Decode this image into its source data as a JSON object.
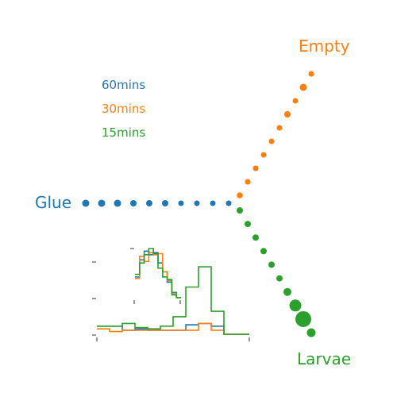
{
  "colors": {
    "glue": "#1f77b4",
    "empty": "#ff7f0e",
    "larvae": "#2ca02c",
    "axis": "#000000"
  },
  "labels": {
    "glue": "Glue",
    "empty": "Empty",
    "larvae": "Larvae"
  },
  "legend": [
    "60mins",
    "30mins",
    "15mins"
  ],
  "chart_data": [
    {
      "type": "scatter",
      "description_free": true,
      "arms": [
        {
          "name": "Glue",
          "color": "#1f77b4",
          "sizes": [
            4.5,
            4.5,
            4.5,
            4,
            4,
            4,
            3.5,
            3.5,
            3.5,
            3.5
          ]
        },
        {
          "name": "Empty",
          "color": "#ff7f0e",
          "sizes": [
            3.8,
            3.5,
            3.5,
            3.5,
            3.5,
            3.5,
            4,
            3.5,
            4.5,
            3.5
          ]
        },
        {
          "name": "Larvae",
          "color": "#2ca02c",
          "sizes": [
            4,
            4,
            4,
            4,
            4,
            4,
            5,
            7.5,
            10,
            5.5
          ]
        }
      ]
    },
    {
      "type": "line",
      "step": true,
      "bins": 12,
      "series": [
        {
          "color": "#1f77b4",
          "values": [
            0.012,
            0.012,
            0.006,
            0.008,
            0.006,
            0.006,
            0.006,
            0.014,
            0.016,
            0.012,
            0.0,
            0.0
          ]
        },
        {
          "color": "#ff7f0e",
          "values": [
            0.008,
            0.004,
            0.006,
            0.006,
            0.006,
            0.006,
            0.006,
            0.006,
            0.016,
            0.006,
            0.0,
            0.0
          ]
        },
        {
          "color": "#2ca02c",
          "values": [
            0.012,
            0.012,
            0.016,
            0.01,
            0.008,
            0.012,
            0.026,
            0.07,
            0.1,
            0.034,
            0.0,
            0.0
          ]
        }
      ],
      "ylim": [
        0,
        0.1
      ]
    },
    {
      "type": "line",
      "step": true,
      "bins": 10,
      "series": [
        {
          "color": "#1f77b4",
          "values": [
            0.45,
            0.78,
            0.95,
            0.88,
            0.92,
            0.72,
            0.55,
            0.35,
            0.15,
            0.05
          ]
        },
        {
          "color": "#ff7f0e",
          "values": [
            0.42,
            0.85,
            0.75,
            0.92,
            0.88,
            0.9,
            0.55,
            0.38,
            0.12,
            0.05
          ]
        },
        {
          "color": "#2ca02c",
          "values": [
            0.5,
            0.72,
            0.88,
            1.0,
            0.9,
            0.62,
            0.45,
            0.4,
            0.1,
            0.05
          ]
        }
      ],
      "ylim": [
        0,
        1.0
      ]
    }
  ]
}
